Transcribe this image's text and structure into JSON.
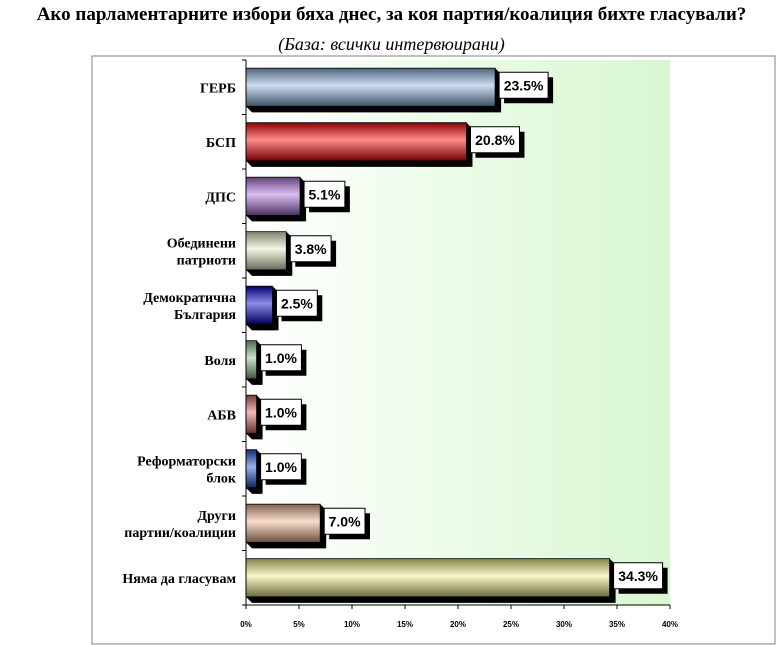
{
  "title": "Ако парламентарните избори бяха днес, за коя партия/коалиция бихте гласували?",
  "subtitle": "(База: всички интервюирани)",
  "chart_data": {
    "type": "bar",
    "orientation": "horizontal",
    "title": "Ако парламентарните избори бяха днес, за коя партия/коалиция бихте гласували?",
    "subtitle": "(База: всички интервюирани)",
    "categories": [
      [
        "ГЕРБ"
      ],
      [
        "БСП"
      ],
      [
        "ДПС"
      ],
      [
        "Обединени",
        "патриоти"
      ],
      [
        "Демократична",
        "България"
      ],
      [
        "Воля"
      ],
      [
        "АБВ"
      ],
      [
        "Реформаторски",
        "блок"
      ],
      [
        "Други",
        "партии/коалиции"
      ],
      [
        "Няма да гласувам"
      ]
    ],
    "values": [
      23.5,
      20.8,
      5.1,
      3.8,
      2.5,
      1.0,
      1.0,
      1.0,
      7.0,
      34.3
    ],
    "data_labels": [
      "23.5%",
      "20.8%",
      "5.1%",
      "3.8%",
      "2.5%",
      "1.0%",
      "1.0%",
      "1.0%",
      "7.0%",
      "34.3%"
    ],
    "bar_colors": [
      "#8fb4e3",
      "#ff0000",
      "#b070e0",
      "#ececc8",
      "#0000cc",
      "#8fbf8f",
      "#e06868",
      "#2050d0",
      "#f0b490",
      "#f0f08c"
    ],
    "xlim": [
      0,
      40
    ],
    "xticks": [
      "0%",
      "5%",
      "10%",
      "15%",
      "20%",
      "25%",
      "30%",
      "35%",
      "40%"
    ],
    "grid": false,
    "legend": "none",
    "plot_background": "#d8f7d0"
  }
}
